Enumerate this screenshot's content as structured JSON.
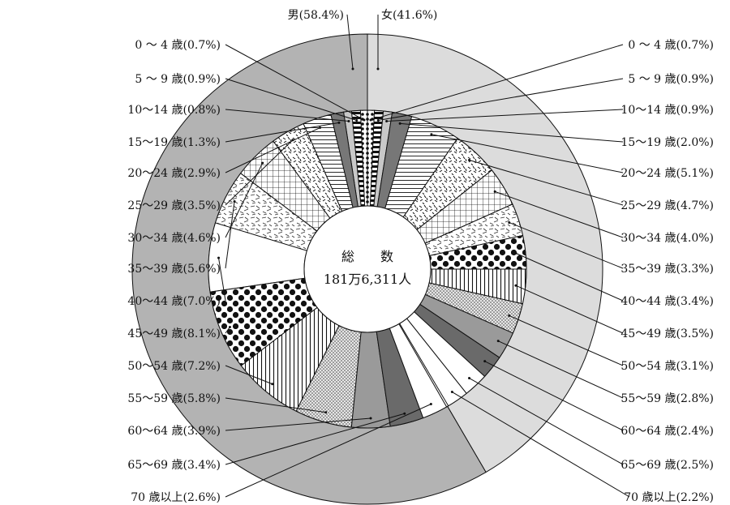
{
  "chart_data": {
    "type": "pie",
    "style": "nested-donut",
    "center_label": "総　　数",
    "center_value": "181万6,311人",
    "outer_ring": [
      {
        "label": "男(58.4%)",
        "value": 58.4,
        "color": "#b3b3b3"
      },
      {
        "label": "女(41.6%)",
        "value": 41.6,
        "color": "#dcdcdc"
      }
    ],
    "inner_ring_male": [
      {
        "label": "0 ～ 4 歳(0.7%)",
        "value": 0.7,
        "pattern": "p-dots"
      },
      {
        "label": "5 ～ 9 歳(0.9%)",
        "value": 0.9,
        "pattern": "p-bricks"
      },
      {
        "label": "10～14 歳(0.8%)",
        "value": 0.8,
        "pattern": "p-lightgray"
      },
      {
        "label": "15～19 歳(1.3%)",
        "value": 1.3,
        "pattern": "p-darkgray"
      },
      {
        "label": "20～24 歳(2.9%)",
        "value": 2.9,
        "pattern": "p-hlines"
      },
      {
        "label": "25～29 歳(3.5%)",
        "value": 3.5,
        "pattern": "p-dashes"
      },
      {
        "label": "30～34 歳(4.6%)",
        "value": 4.6,
        "pattern": "p-grid"
      },
      {
        "label": "35～39 歳(5.6%)",
        "value": 5.6,
        "pattern": "p-straw"
      },
      {
        "label": "40～44 歳(7.0%)",
        "value": 7.0,
        "pattern": "p-white"
      },
      {
        "label": "45～49 歳(8.1%)",
        "value": 8.1,
        "pattern": "p-bigdots"
      },
      {
        "label": "50～54 歳(7.2%)",
        "value": 7.2,
        "pattern": "p-vlines"
      },
      {
        "label": "55～59 歳(5.8%)",
        "value": 5.8,
        "pattern": "p-stipple"
      },
      {
        "label": "60～64 歳(3.9%)",
        "value": 3.9,
        "pattern": "p-midgray"
      },
      {
        "label": "65～69 歳(3.4%)",
        "value": 3.4,
        "pattern": "p-darkgray2"
      },
      {
        "label": "70 歳以上(2.6%)",
        "value": 2.6,
        "pattern": "p-white"
      }
    ],
    "inner_ring_female": [
      {
        "label": "0 ～ 4 歳(0.7%)",
        "value": 0.7,
        "pattern": "p-dots"
      },
      {
        "label": "5 ～ 9 歳(0.9%)",
        "value": 0.9,
        "pattern": "p-bricks"
      },
      {
        "label": "10～14 歳(0.9%)",
        "value": 0.9,
        "pattern": "p-lightgray"
      },
      {
        "label": "15～19 歳(2.0%)",
        "value": 2.0,
        "pattern": "p-darkgray"
      },
      {
        "label": "20～24 歳(5.1%)",
        "value": 5.1,
        "pattern": "p-hlines"
      },
      {
        "label": "25～29 歳(4.7%)",
        "value": 4.7,
        "pattern": "p-dashes"
      },
      {
        "label": "30～34 歳(4.0%)",
        "value": 4.0,
        "pattern": "p-grid"
      },
      {
        "label": "35～39 歳(3.3%)",
        "value": 3.3,
        "pattern": "p-straw"
      },
      {
        "label": "40～44 歳(3.4%)",
        "value": 3.4,
        "pattern": "p-bigdots"
      },
      {
        "label": "45～49 歳(3.5%)",
        "value": 3.5,
        "pattern": "p-vlines"
      },
      {
        "label": "50～54 歳(3.1%)",
        "value": 3.1,
        "pattern": "p-stipple"
      },
      {
        "label": "55～59 歳(2.8%)",
        "value": 2.8,
        "pattern": "p-midgray"
      },
      {
        "label": "60～64 歳(2.4%)",
        "value": 2.4,
        "pattern": "p-darkgray2"
      },
      {
        "label": "65～69 歳(2.5%)",
        "value": 2.5,
        "pattern": "p-white"
      },
      {
        "label": "70 歳以上(2.2%)",
        "value": 2.2,
        "pattern": "p-white"
      }
    ]
  }
}
